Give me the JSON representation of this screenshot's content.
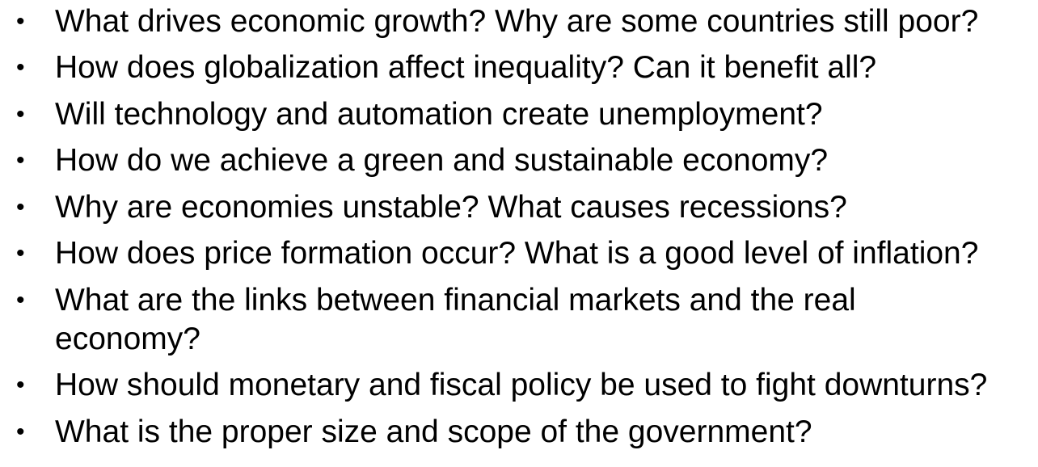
{
  "bullet_glyph": "•",
  "questions": [
    "What drives economic growth? Why are some countries still poor?",
    "How does globalization affect inequality? Can it benefit all?",
    "Will technology and automation create unemployment?",
    "How do we achieve a green and sustainable economy?",
    "Why are economies unstable? What causes recessions?",
    "How does price formation occur? What is a good level of inflation?",
    "What are the links between financial markets and the real economy?",
    "How should monetary and fiscal policy be used to fight downturns?",
    "What is the proper size and scope of the government?"
  ]
}
